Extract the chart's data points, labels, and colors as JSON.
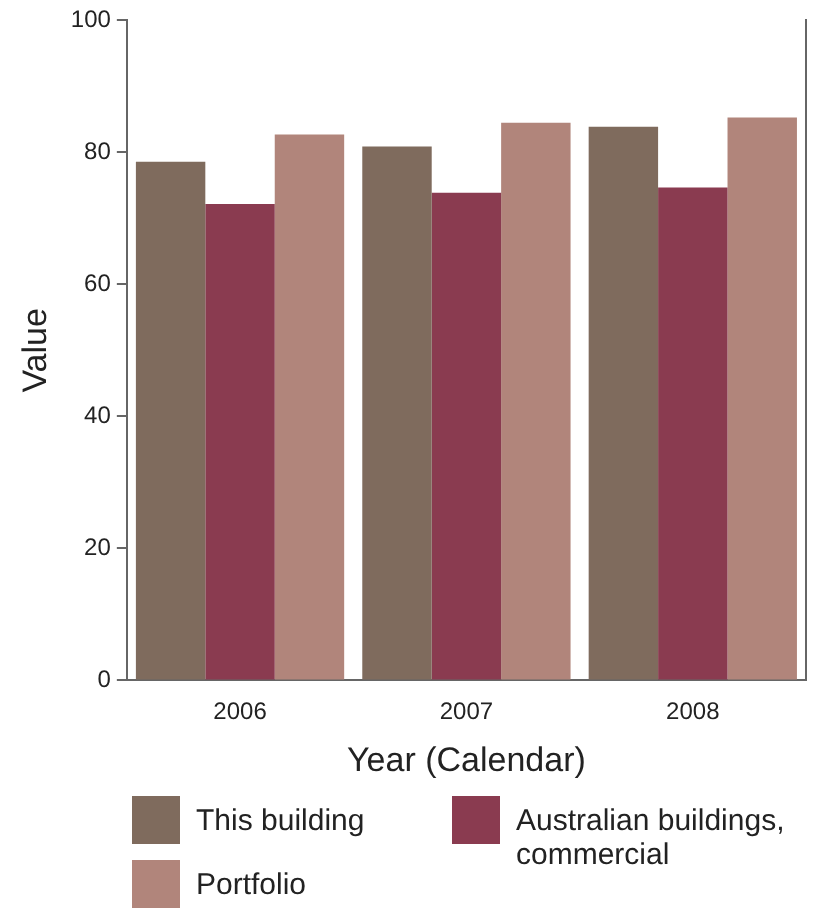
{
  "chart_data": {
    "type": "bar",
    "xlabel": "Year (Calendar)",
    "ylabel": "Value",
    "categories": [
      "2006",
      "2007",
      "2008"
    ],
    "series": [
      {
        "name": "This building",
        "color": "#7f6b5d",
        "values": [
          78.6,
          80.9,
          83.9
        ]
      },
      {
        "name": "Australian buildings, commercial",
        "color": "#8a3b50",
        "values": [
          72.2,
          73.9,
          74.7
        ]
      },
      {
        "name": "Portfolio",
        "color": "#b1857b",
        "values": [
          82.7,
          84.5,
          85.3
        ]
      }
    ],
    "ylim": [
      0,
      100
    ],
    "yticks": [
      0,
      20,
      40,
      60,
      80,
      100
    ],
    "grid": false,
    "legend": "bottom"
  }
}
